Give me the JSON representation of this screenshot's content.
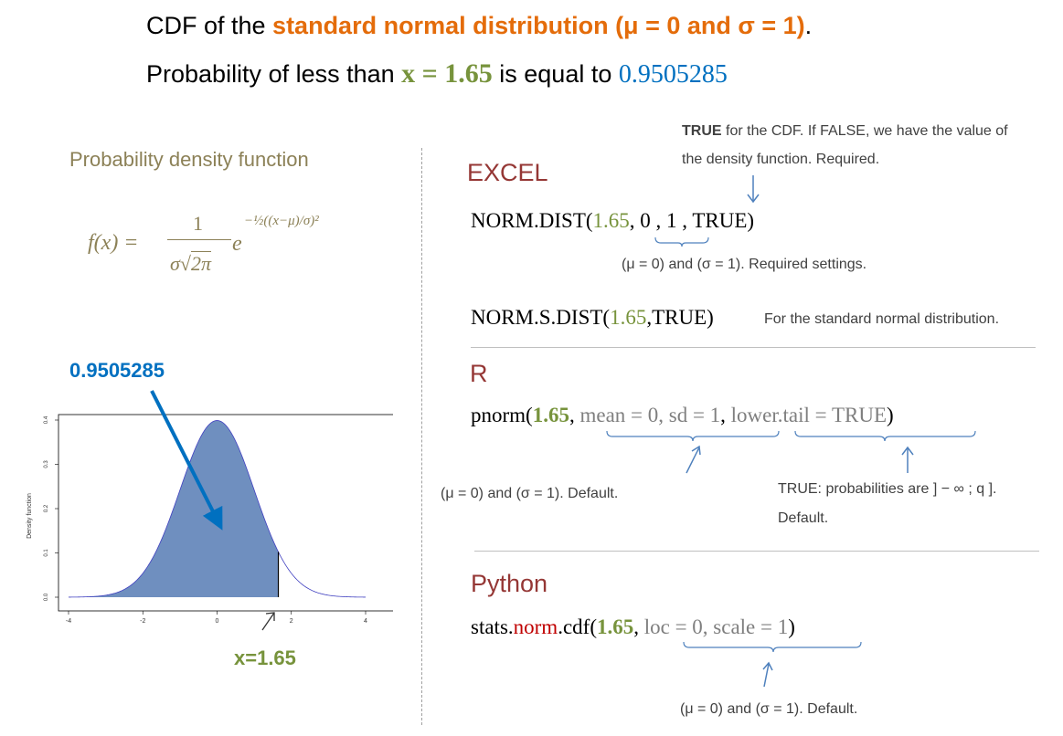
{
  "header": {
    "line1_prefix": "CDF of the ",
    "line1_highlight": "standard normal distribution (μ = 0 and σ = 1)",
    "line1_suffix": ".",
    "line2_prefix": "Probability of less than ",
    "line2_x": "x = 1.65",
    "line2_mid": " is equal to ",
    "line2_value": "0.9505285"
  },
  "left": {
    "pdf_title": "Probability density function",
    "formula_lhs": "f(x) =",
    "formula_num": "1",
    "formula_den_sigma": "σ",
    "formula_den_root": "2π",
    "formula_e": "e",
    "formula_exp": "−½((x−μ)/σ)²",
    "value_label": "0.9505285",
    "x_label": "x=1.65",
    "plot_ylabel": "Density function"
  },
  "chart_data": {
    "type": "area",
    "title": "",
    "xlabel": "",
    "ylabel": "Density function",
    "xlim": [
      -4,
      4
    ],
    "ylim": [
      0,
      0.4
    ],
    "x_ticks": [
      "-4",
      "-2",
      "0",
      "2",
      "4"
    ],
    "y_ticks": [
      "0.0",
      "0.1",
      "0.2",
      "0.3",
      "0.4"
    ],
    "shade_upper": 1.65,
    "fill_color": "#6f8fbf",
    "curve_color": "#4040c0",
    "series": [
      {
        "values_function": "standard normal pdf"
      }
    ]
  },
  "excel": {
    "heading": "EXCEL",
    "note_true_bold": "TRUE",
    "note_true_rest": " for the CDF. If FALSE, we have the value of",
    "note_true_line2": "the density function. Required.",
    "f1_name": "NORM.DIST(",
    "f1_arg1": "1.65",
    "f1_rest": ", 0 , 1 , TRUE)",
    "f1_note": "(μ = 0) and (σ = 1). Required settings.",
    "f2_name": "NORM.S.DIST(",
    "f2_arg1": "1.65",
    "f2_rest": ",TRUE)",
    "f2_note": "For the standard normal distribution."
  },
  "r": {
    "heading": "R",
    "f_name": "pnorm(",
    "f_arg1": "1.65",
    "f_sep": ", ",
    "f_args": "mean = 0, sd = 1",
    "f_sep2": ", ",
    "f_args2": "lower.tail = TRUE",
    "f_close": ")",
    "note_left": "(μ = 0) and (σ = 1). Default.",
    "note_right_l1": "TRUE: probabilities are ] − ∞ ; q ].",
    "note_right_l2": "Default."
  },
  "python": {
    "heading": "Python",
    "f_pre": "stats.",
    "f_norm": "norm",
    "f_cdf": ".cdf(",
    "f_arg1": "1.65",
    "f_sep": ", ",
    "f_args": "loc = 0, scale = 1",
    "f_close": ")",
    "note": "(μ = 0) and (σ = 1). Default."
  }
}
